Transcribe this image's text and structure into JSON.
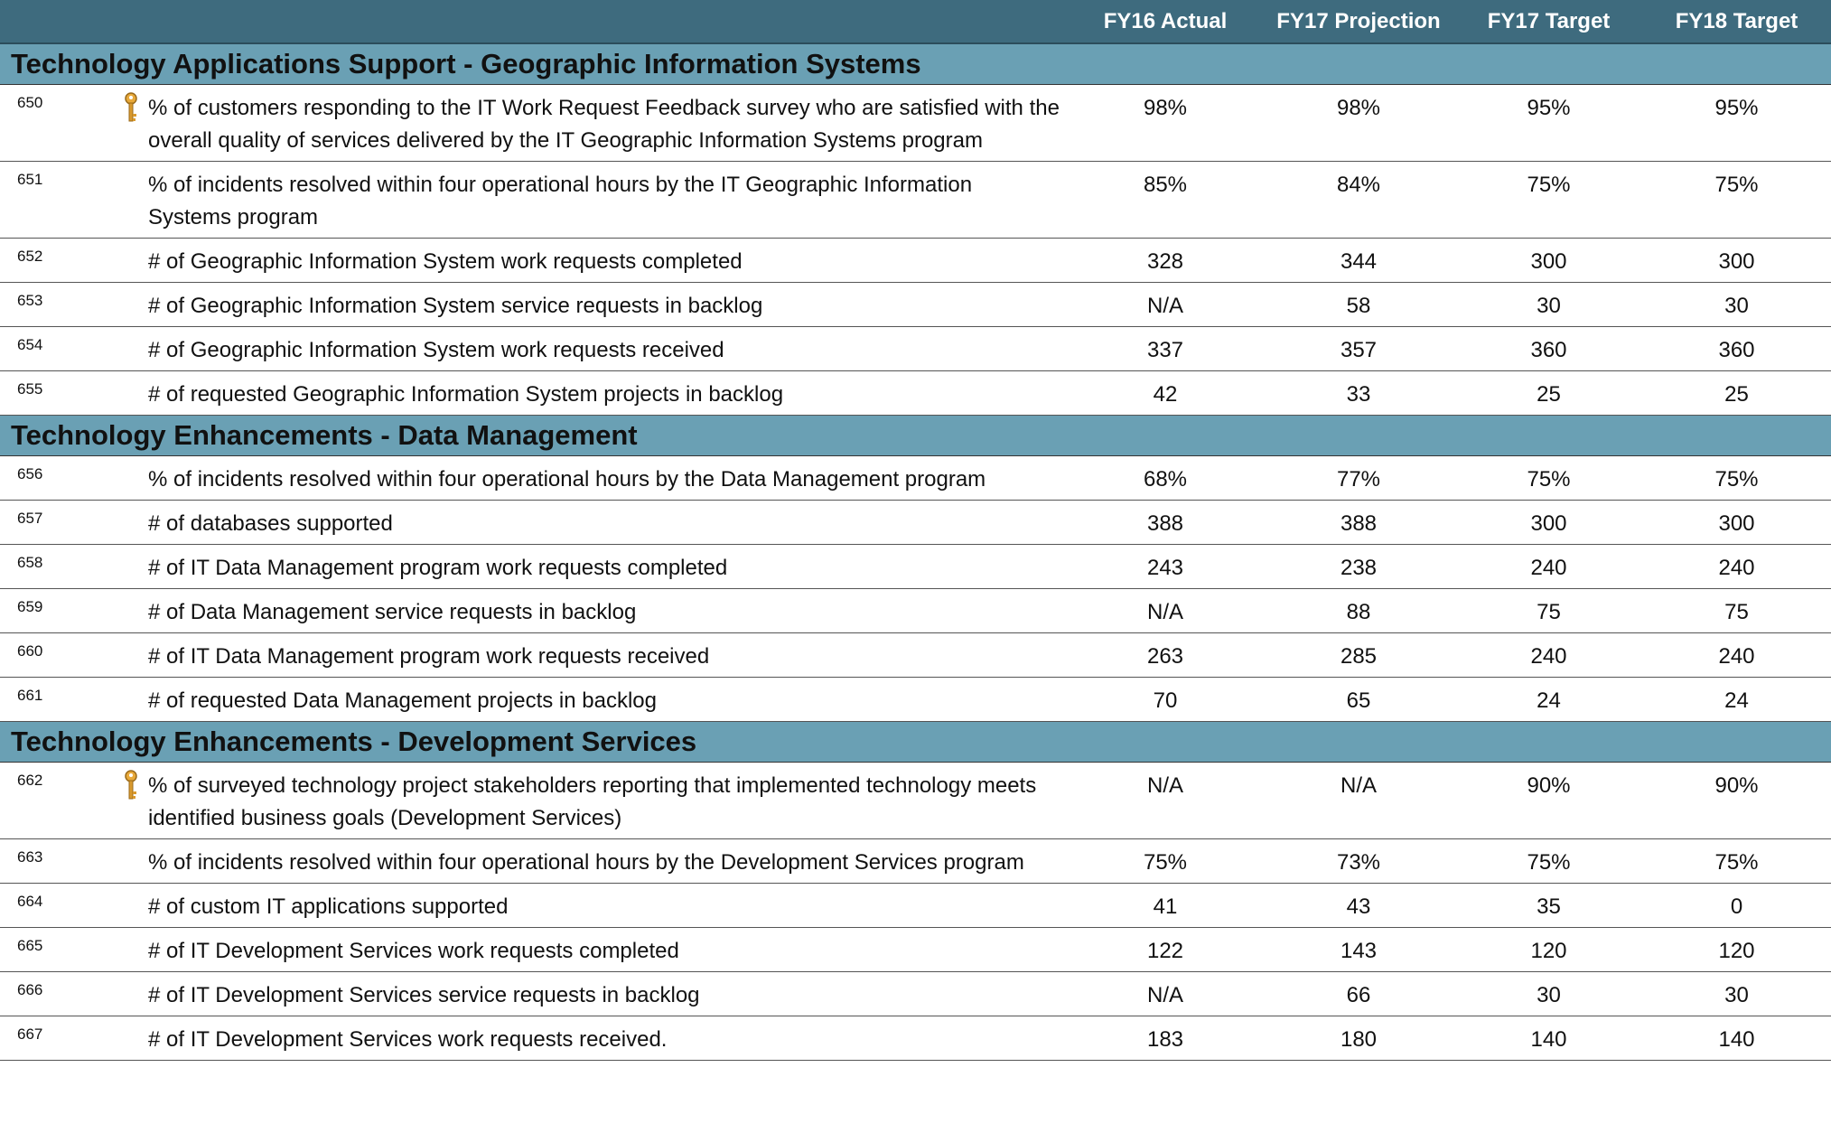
{
  "header": {
    "columns": [
      "FY16 Actual",
      "FY17 Projection",
      "FY17 Target",
      "FY18 Target"
    ]
  },
  "sections": [
    {
      "title": "Technology Applications Support - Geographic Information Systems",
      "rows": [
        {
          "id": "650",
          "key": true,
          "text": "% of customers responding to the IT Work Request Feedback survey who are satisfied with the overall quality of services delivered by the IT Geographic Information Systems program",
          "values": [
            "98%",
            "98%",
            "95%",
            "95%"
          ]
        },
        {
          "id": "651",
          "text": "% of incidents resolved within four operational hours by the IT Geographic Information Systems program",
          "values": [
            "85%",
            "84%",
            "75%",
            "75%"
          ]
        },
        {
          "id": "652",
          "text": "# of Geographic Information System work requests completed",
          "values": [
            "328",
            "344",
            "300",
            "300"
          ]
        },
        {
          "id": "653",
          "text": "# of Geographic Information System service requests in backlog",
          "values": [
            "N/A",
            "58",
            "30",
            "30"
          ]
        },
        {
          "id": "654",
          "text": "# of Geographic Information System work requests received",
          "values": [
            "337",
            "357",
            "360",
            "360"
          ]
        },
        {
          "id": "655",
          "text": "# of requested Geographic Information System projects in backlog",
          "values": [
            "42",
            "33",
            "25",
            "25"
          ]
        }
      ]
    },
    {
      "title": "Technology Enhancements - Data Management",
      "rows": [
        {
          "id": "656",
          "text": "% of incidents resolved within four operational hours by the Data Management program",
          "values": [
            "68%",
            "77%",
            "75%",
            "75%"
          ]
        },
        {
          "id": "657",
          "text": "# of databases supported",
          "values": [
            "388",
            "388",
            "300",
            "300"
          ]
        },
        {
          "id": "658",
          "text": "# of IT Data Management program work requests completed",
          "values": [
            "243",
            "238",
            "240",
            "240"
          ]
        },
        {
          "id": "659",
          "text": "# of Data Management service requests in backlog",
          "values": [
            "N/A",
            "88",
            "75",
            "75"
          ]
        },
        {
          "id": "660",
          "text": "# of IT Data Management program work requests received",
          "values": [
            "263",
            "285",
            "240",
            "240"
          ]
        },
        {
          "id": "661",
          "text": "# of requested Data Management projects in backlog",
          "values": [
            "70",
            "65",
            "24",
            "24"
          ]
        }
      ]
    },
    {
      "title": "Technology Enhancements - Development Services",
      "rows": [
        {
          "id": "662",
          "key": true,
          "text": "% of surveyed technology project stakeholders reporting that implemented technology meets identified business goals (Development Services)",
          "values": [
            "N/A",
            "N/A",
            "90%",
            "90%"
          ]
        },
        {
          "id": "663",
          "text": "% of incidents resolved within four operational hours by the Development Services program",
          "values": [
            "75%",
            "73%",
            "75%",
            "75%"
          ]
        },
        {
          "id": "664",
          "text": "# of custom IT applications supported",
          "values": [
            "41",
            "43",
            "35",
            "0"
          ]
        },
        {
          "id": "665",
          "text": "# of IT Development Services work requests completed",
          "values": [
            "122",
            "143",
            "120",
            "120"
          ]
        },
        {
          "id": "666",
          "text": "# of IT Development Services service requests in backlog",
          "values": [
            "N/A",
            "66",
            "30",
            "30"
          ]
        },
        {
          "id": "667",
          "text": "# of IT Development Services work requests received.",
          "values": [
            "183",
            "180",
            "140",
            "140"
          ]
        }
      ]
    }
  ]
}
